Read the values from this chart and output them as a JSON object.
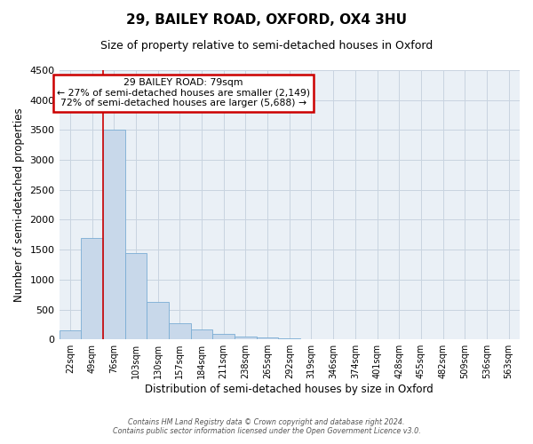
{
  "title": "29, BAILEY ROAD, OXFORD, OX4 3HU",
  "subtitle": "Size of property relative to semi-detached houses in Oxford",
  "xlabel": "Distribution of semi-detached houses by size in Oxford",
  "ylabel": "Number of semi-detached properties",
  "bar_labels": [
    "22sqm",
    "49sqm",
    "76sqm",
    "103sqm",
    "130sqm",
    "157sqm",
    "184sqm",
    "211sqm",
    "238sqm",
    "265sqm",
    "292sqm",
    "319sqm",
    "346sqm",
    "374sqm",
    "401sqm",
    "428sqm",
    "455sqm",
    "482sqm",
    "509sqm",
    "536sqm",
    "563sqm"
  ],
  "bar_color": "#c8d8ea",
  "bar_edge_color": "#7aadd4",
  "bar_edge_width": 0.6,
  "ylim": [
    0,
    4500
  ],
  "yticks": [
    0,
    500,
    1000,
    1500,
    2000,
    2500,
    3000,
    3500,
    4000,
    4500
  ],
  "property_line_x": 2.0,
  "property_line_color": "#cc0000",
  "annotation_title": "29 BAILEY ROAD: 79sqm",
  "annotation_line1": "← 27% of semi-detached houses are smaller (2,149)",
  "annotation_line2": "72% of semi-detached houses are larger (5,688) →",
  "annotation_box_color": "#cc0000",
  "grid_color": "#c8d4e0",
  "footer1": "Contains HM Land Registry data © Crown copyright and database right 2024.",
  "footer2": "Contains public sector information licensed under the Open Government Licence v3.0.",
  "background_color": "#eaf0f6",
  "all_bar_values": [
    150,
    1700,
    3500,
    1450,
    620,
    270,
    160,
    90,
    55,
    30,
    25,
    0,
    0,
    0,
    0,
    0,
    0,
    0,
    0,
    0,
    0
  ]
}
